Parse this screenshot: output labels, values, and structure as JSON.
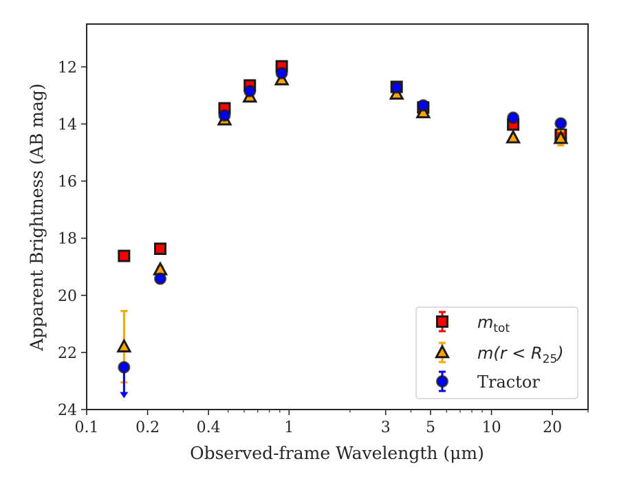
{
  "chart_data": {
    "type": "scatter",
    "xlabel": "Observed-frame Wavelength (μm)",
    "ylabel": "Apparent Brightness (AB mag)",
    "xscale": "log",
    "xlim": [
      0.1,
      30
    ],
    "ylim": [
      24,
      10.5
    ],
    "y_inverted": true,
    "x_ticks": [
      0.1,
      0.2,
      0.4,
      1,
      3,
      5,
      10,
      20
    ],
    "x_tick_labels": [
      "0.1",
      "0.2",
      "0.4",
      "1",
      "3",
      "5",
      "10",
      "20"
    ],
    "y_ticks": [
      12,
      14,
      16,
      18,
      20,
      22,
      24
    ],
    "y_tick_labels": [
      "12",
      "14",
      "16",
      "18",
      "20",
      "22",
      "24"
    ],
    "grid": false,
    "legend_position": "bottom-right",
    "series": [
      {
        "name": "m_tot",
        "legend_main": "m",
        "legend_sub": "tot",
        "marker": "square",
        "color": "#ff0000",
        "error_color": "#ff0000",
        "x": [
          0.153,
          0.231,
          0.48,
          0.64,
          0.92,
          3.4,
          4.6,
          12.8,
          22.0
        ],
        "y": [
          18.62,
          18.37,
          13.45,
          12.65,
          11.98,
          12.7,
          13.42,
          14.02,
          14.38
        ],
        "yerr": [
          0.05,
          0.05,
          0.03,
          0.03,
          0.03,
          0.03,
          0.03,
          0.05,
          0.1
        ]
      },
      {
        "name": "m(r<R_25)",
        "legend_main": "m(r < R",
        "legend_sub": "25",
        "legend_tail": ")",
        "marker": "triangle",
        "color": "#ffa500",
        "error_color": "#ffa500",
        "x": [
          0.153,
          0.231,
          0.48,
          0.64,
          0.92,
          3.4,
          4.6,
          12.8,
          22.0
        ],
        "y": [
          21.8,
          19.1,
          13.85,
          13.05,
          12.45,
          12.95,
          13.6,
          14.48,
          14.5
        ],
        "yerr": [
          1.25,
          0.1,
          0.03,
          0.03,
          0.03,
          0.03,
          0.03,
          0.05,
          0.25
        ]
      },
      {
        "name": "Tractor",
        "marker": "circle",
        "color": "#0000ff",
        "error_color": "#0000ff",
        "x": [
          0.153,
          0.231,
          0.48,
          0.64,
          0.92,
          3.4,
          4.6,
          12.8,
          22.0
        ],
        "y": [
          22.52,
          19.42,
          13.7,
          12.85,
          12.22,
          12.72,
          13.35,
          13.78,
          13.98
        ],
        "yerr": [
          0.05,
          0.05,
          0.03,
          0.03,
          0.03,
          0.03,
          0.03,
          0.05,
          0.05
        ],
        "upper_limit_index": 0
      }
    ]
  }
}
